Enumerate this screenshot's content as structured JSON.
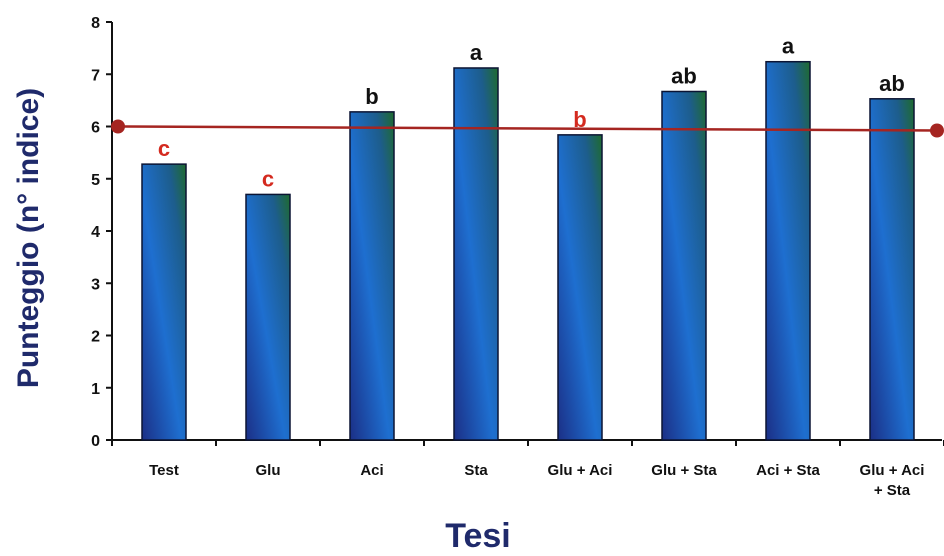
{
  "chart_data": {
    "type": "bar",
    "xlabel": "Tesi",
    "ylabel": "Punteggio (n° indice)",
    "ylim": [
      0,
      8
    ],
    "yticks": [
      0,
      1,
      2,
      3,
      4,
      5,
      6,
      7,
      8
    ],
    "grid": false,
    "categories": [
      [
        "Test"
      ],
      [
        "Glu"
      ],
      [
        "Aci"
      ],
      [
        "Sta"
      ],
      [
        "Glu + Aci"
      ],
      [
        "Glu + Sta"
      ],
      [
        "Aci + Sta"
      ],
      [
        "Glu + Aci",
        "+ Sta"
      ]
    ],
    "values": [
      5.28,
      4.7,
      6.28,
      7.12,
      5.84,
      6.67,
      7.24,
      6.53
    ],
    "significance_letters": [
      "c",
      "c",
      "b",
      "a",
      "b",
      "ab",
      "a",
      "ab"
    ],
    "letter_colors": [
      "#d42a1f",
      "#d42a1f",
      "#111111",
      "#111111",
      "#d42a1f",
      "#111111",
      "#111111",
      "#111111"
    ],
    "reference_line": {
      "value": 6.0,
      "color": "#a52521",
      "marker_color": "#a52521"
    },
    "bar_gradient": {
      "bottom": "#1e3a8a",
      "middle": "#1e73c9",
      "top": "#1f6a3a"
    },
    "axis_title_color": "#1f2a6b"
  }
}
